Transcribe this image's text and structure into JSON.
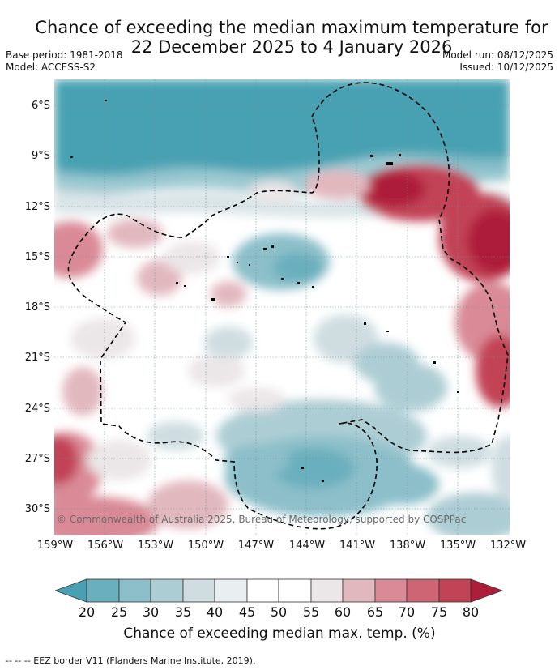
{
  "title_line1": "Chance of exceeding the median maximum temperature for",
  "title_line2": "22 December 2025 to 4 January 2026",
  "base_period": "Base period: 1981-2018",
  "model": "Model: ACCESS-S2",
  "model_run": "Model run: 08/12/2025",
  "issued": "Issued: 10/12/2025",
  "lat_labels": [
    "6°S",
    "9°S",
    "12°S",
    "15°S",
    "18°S",
    "21°S",
    "24°S",
    "27°S",
    "30°S"
  ],
  "lon_labels": [
    "159°W",
    "156°W",
    "153°W",
    "150°W",
    "147°W",
    "144°W",
    "141°W",
    "138°W",
    "135°W",
    "132°W"
  ],
  "copyright": "© Commonwealth of Australia 2025, Bureau of Meteorology, supported by COSPPac",
  "colorbar": {
    "ticks": [
      "20",
      "25",
      "30",
      "35",
      "40",
      "45",
      "50",
      "55",
      "60",
      "65",
      "70",
      "75",
      "80"
    ],
    "colors": [
      "#47a1b2",
      "#6aafbd",
      "#8cbfc9",
      "#adcdd4",
      "#cfdde1",
      "#e9eff1",
      "#ffffff",
      "#ffffff",
      "#ebe6e7",
      "#e2b8bf",
      "#d98a96",
      "#cd6574",
      "#c24256",
      "#ae1e3a"
    ],
    "label": "Chance of exceeding median max. temp. (%)"
  },
  "footnote": "--  --  -- EEZ border V11 (Flanders Marine Institute, 2019)."
}
